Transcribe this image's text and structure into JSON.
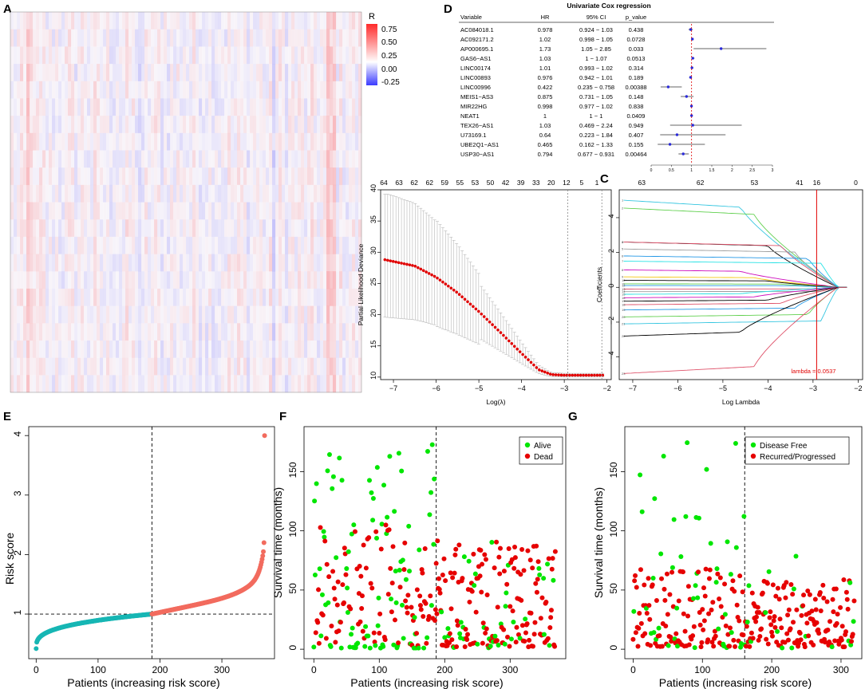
{
  "chart_data": [
    {
      "panel": "A",
      "type": "heatmap",
      "title": "",
      "legend_title": "R",
      "legend_ticks": [
        "0.75",
        "0.50",
        "0.25",
        "0.00",
        "-0.25"
      ],
      "value_range": [
        -0.3,
        0.8
      ],
      "colors": {
        "low": "#3b3bff",
        "mid": "#ffffff",
        "high": "#ff2a2a"
      }
    },
    {
      "panel": "D",
      "type": "table",
      "title": "Univariate Cox regression",
      "headers": [
        "Variable",
        "HR",
        "95% CI",
        "p_value"
      ],
      "rows": [
        {
          "variable": "AC084018.1",
          "hr": "0.978",
          "ci": "0.924 − 1.03",
          "p": "0.438",
          "hr_val": 0.978,
          "lo": 0.924,
          "hi": 1.03
        },
        {
          "variable": "AC092171.2",
          "hr": "1.02",
          "ci": "0.998 − 1.05",
          "p": "0.0728",
          "hr_val": 1.02,
          "lo": 0.998,
          "hi": 1.05
        },
        {
          "variable": "AP000695.1",
          "hr": "1.73",
          "ci": "1.05 − 2.85",
          "p": "0.033",
          "hr_val": 1.73,
          "lo": 1.05,
          "hi": 2.85
        },
        {
          "variable": "GAS6−AS1",
          "hr": "1.03",
          "ci": "1 − 1.07",
          "p": "0.0513",
          "hr_val": 1.03,
          "lo": 1.0,
          "hi": 1.07
        },
        {
          "variable": "LINC00174",
          "hr": "1.01",
          "ci": "0.993 − 1.02",
          "p": "0.314",
          "hr_val": 1.01,
          "lo": 0.993,
          "hi": 1.02
        },
        {
          "variable": "LINC00893",
          "hr": "0.976",
          "ci": "0.942 − 1.01",
          "p": "0.189",
          "hr_val": 0.976,
          "lo": 0.942,
          "hi": 1.01
        },
        {
          "variable": "LINC00996",
          "hr": "0.422",
          "ci": "0.235 − 0.758",
          "p": "0.00388",
          "hr_val": 0.422,
          "lo": 0.235,
          "hi": 0.758
        },
        {
          "variable": "MEIS1−AS3",
          "hr": "0.875",
          "ci": "0.731 − 1.05",
          "p": "0.148",
          "hr_val": 0.875,
          "lo": 0.731,
          "hi": 1.05
        },
        {
          "variable": "MIR22HG",
          "hr": "0.998",
          "ci": "0.977 − 1.02",
          "p": "0.838",
          "hr_val": 0.998,
          "lo": 0.977,
          "hi": 1.02
        },
        {
          "variable": "NEAT1",
          "hr": "1",
          "ci": "1 − 1",
          "p": "0.0409",
          "hr_val": 1.0,
          "lo": 1.0,
          "hi": 1.0
        },
        {
          "variable": "TEX26−AS1",
          "hr": "1.03",
          "ci": "0.469 − 2.24",
          "p": "0.949",
          "hr_val": 1.03,
          "lo": 0.469,
          "hi": 2.24
        },
        {
          "variable": "U73169.1",
          "hr": "0.64",
          "ci": "0.223 − 1.84",
          "p": "0.407",
          "hr_val": 0.64,
          "lo": 0.223,
          "hi": 1.84
        },
        {
          "variable": "UBE2Q1−AS1",
          "hr": "0.465",
          "ci": "0.162 − 1.33",
          "p": "0.155",
          "hr_val": 0.465,
          "lo": 0.162,
          "hi": 1.33
        },
        {
          "variable": "USP30−AS1",
          "hr": "0.794",
          "ci": "0.677 − 0.931",
          "p": "0.00464",
          "hr_val": 0.794,
          "lo": 0.677,
          "hi": 0.931
        }
      ],
      "forest_xlim": [
        0,
        3
      ],
      "forest_ticks": [
        "0",
        "0.5",
        "1",
        "1.5",
        "2",
        "2.5",
        "3"
      ],
      "reference_line": 1
    },
    {
      "panel": "B",
      "type": "scatter",
      "title": "",
      "xlabel": "Log(λ)",
      "ylabel": "Partial Likelihood Deviance",
      "xlim": [
        -7.3,
        -1.9
      ],
      "ylim": [
        9.6,
        40
      ],
      "x_ticks": [
        -7,
        -6,
        -5,
        -4,
        -3,
        -2
      ],
      "y_ticks": [
        10,
        15,
        20,
        25,
        30,
        35,
        40
      ],
      "top_ticks": [
        "64",
        "63",
        "62",
        "62",
        "59",
        "55",
        "53",
        "50",
        "42",
        "39",
        "33",
        "20",
        "12",
        "5",
        "1"
      ],
      "curve_knots": {
        "x": [
          -7.2,
          -6.5,
          -6.0,
          -5.5,
          -5.0,
          -4.5,
          -4.0,
          -3.6,
          -3.3,
          -3.0,
          -2.1
        ],
        "y": [
          28.8,
          27.8,
          26.0,
          23.5,
          20.5,
          17.2,
          13.8,
          11.2,
          10.4,
          10.3,
          10.3
        ]
      },
      "vlines": [
        -2.92,
        -2.12
      ]
    },
    {
      "panel": "C",
      "type": "line",
      "title": "",
      "xlabel": "Log Lambda",
      "ylabel": "Coefficients",
      "xlim": [
        -7.3,
        -1.9
      ],
      "ylim": [
        -5.3,
        5.6
      ],
      "x_ticks": [
        -7,
        -6,
        -5,
        -4,
        -3,
        -2
      ],
      "y_ticks": [
        -4,
        -2,
        0,
        2,
        4
      ],
      "top_ticks": [
        "63",
        "62",
        "53",
        "41",
        "16",
        "0"
      ],
      "lambda_line": -2.92,
      "annotation": "lambda = 0.0537",
      "series": [
        {
          "start": 5.0,
          "color": "#36c6e0"
        },
        {
          "start": 4.55,
          "color": "#61d04f"
        },
        {
          "start": 2.6,
          "color": "#000000"
        },
        {
          "start": 2.6,
          "color": "#df536b"
        },
        {
          "start": 2.2,
          "color": "#9e9e9e"
        },
        {
          "start": 1.8,
          "color": "#2297e6"
        },
        {
          "start": 1.5,
          "color": "#28e2e5"
        },
        {
          "start": 1.0,
          "color": "#cd0bbc"
        },
        {
          "start": 0.6,
          "color": "#f5c710"
        },
        {
          "start": 0.4,
          "color": "#000000"
        },
        {
          "start": 0.2,
          "color": "#61d04f"
        },
        {
          "start": 0.1,
          "color": "#2297e6"
        },
        {
          "start": -0.1,
          "color": "#df536b"
        },
        {
          "start": -0.25,
          "color": "#9e9e9e"
        },
        {
          "start": -0.4,
          "color": "#28e2e5"
        },
        {
          "start": -0.6,
          "color": "#cd0bbc"
        },
        {
          "start": -0.8,
          "color": "#000000"
        },
        {
          "start": -1.0,
          "color": "#df536b"
        },
        {
          "start": -1.3,
          "color": "#2297e6"
        },
        {
          "start": -1.7,
          "color": "#61d04f"
        },
        {
          "start": -2.1,
          "color": "#36c6e0"
        },
        {
          "start": -2.8,
          "color": "#000000"
        },
        {
          "start": -4.95,
          "color": "#df536b"
        }
      ]
    },
    {
      "panel": "E",
      "type": "scatter",
      "title": "",
      "xlabel": "Patients (increasing risk score)",
      "ylabel": "Risk score",
      "xlim": [
        -12,
        385
      ],
      "ylim": [
        0.25,
        4.15
      ],
      "x_ticks": [
        0,
        100,
        200,
        300
      ],
      "y_ticks": [
        1,
        2,
        3,
        4
      ],
      "n": 370,
      "cutoff_index": 187,
      "cutoff_value": 1.0,
      "colors": {
        "low": "#17b6b4",
        "high": "#f26b5e"
      },
      "max_score": 4.0
    },
    {
      "panel": "F",
      "type": "scatter",
      "title": "",
      "xlabel": "Patients (increasing risk score)",
      "ylabel": "Survival time (months)",
      "xlim": [
        -15,
        385
      ],
      "ylim": [
        -8,
        188
      ],
      "x_ticks": [
        0,
        100,
        200,
        300
      ],
      "y_ticks": [
        0,
        50,
        100,
        150
      ],
      "n": 370,
      "cutoff_index": 187,
      "legend": [
        "Alive",
        "Dead"
      ],
      "colors": {
        "a": "#00e600",
        "b": "#e60000"
      }
    },
    {
      "panel": "G",
      "type": "scatter",
      "title": "",
      "xlabel": "Patients (increasing risk score)",
      "ylabel": "Survival time (months)",
      "xlim": [
        -12,
        330
      ],
      "ylim": [
        -8,
        188
      ],
      "x_ticks": [
        0,
        100,
        200,
        300
      ],
      "y_ticks": [
        0,
        50,
        100,
        150
      ],
      "n": 320,
      "cutoff_index": 161,
      "legend": [
        "Disease Free",
        "Recurred/Progressed"
      ],
      "colors": {
        "a": "#00e600",
        "b": "#e60000"
      }
    }
  ],
  "panel_labels": [
    "A",
    "B",
    "C",
    "D",
    "E",
    "F",
    "G"
  ]
}
